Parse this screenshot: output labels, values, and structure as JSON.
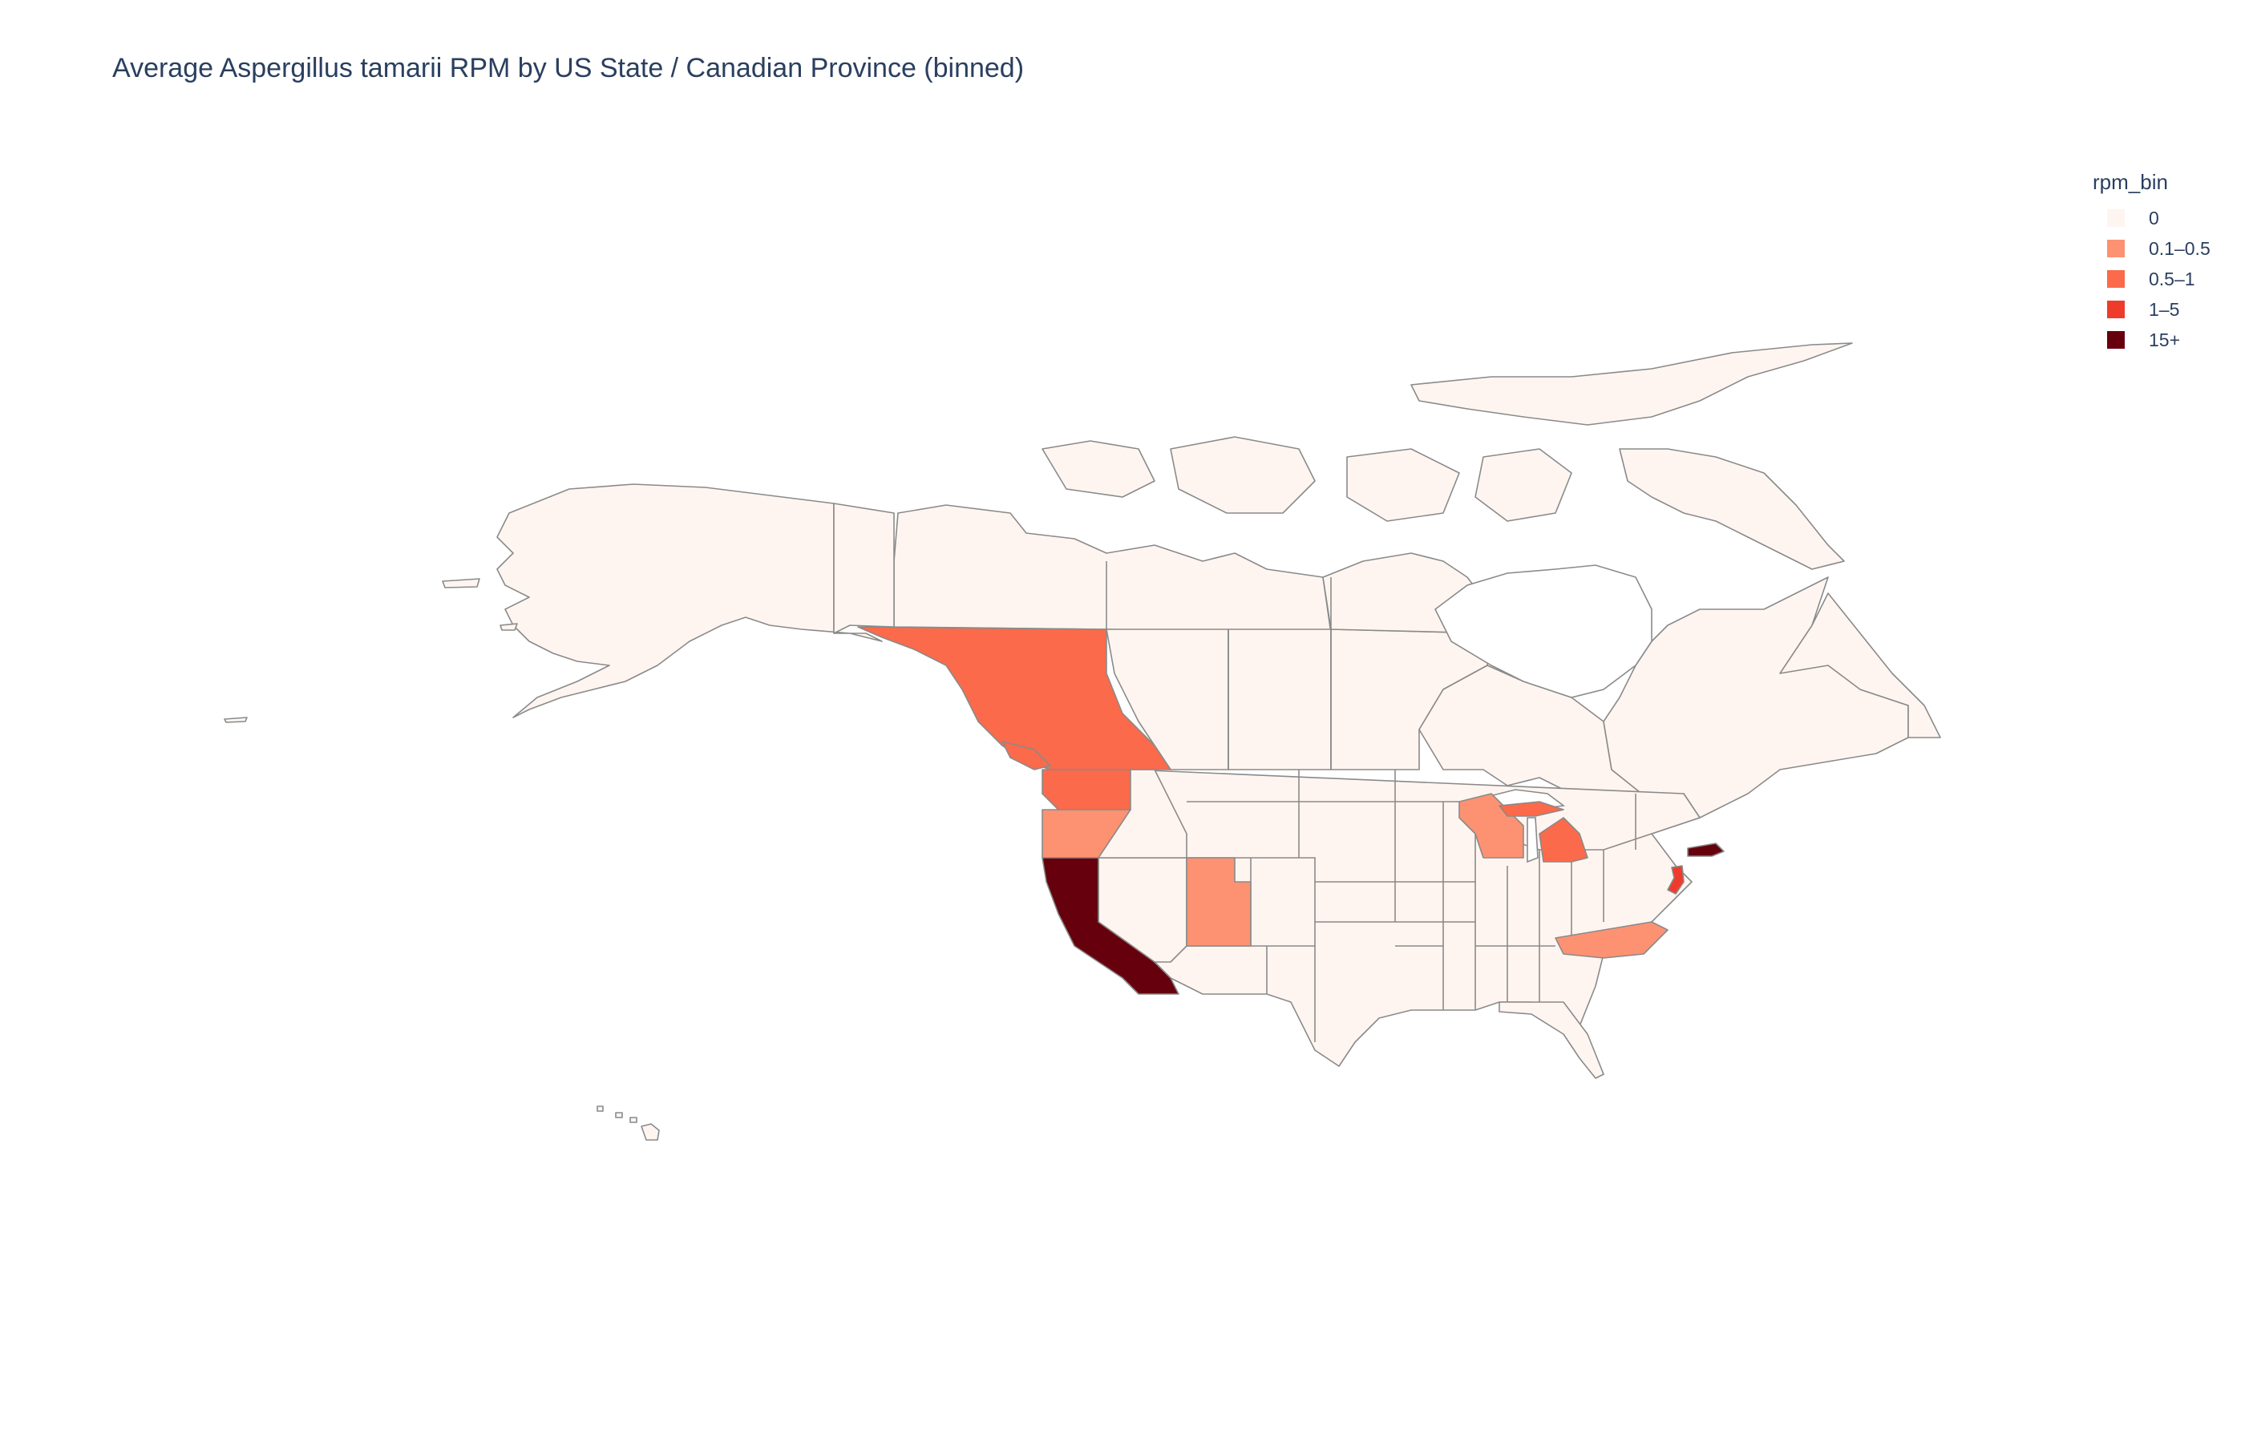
{
  "title": "Average Aspergillus tamarii RPM by US State / Canadian Province (binned)",
  "legend": {
    "title": "rpm_bin",
    "items": [
      {
        "label": "0",
        "color": "#fff5f0"
      },
      {
        "label": "0.1–0.5",
        "color": "#fc9272"
      },
      {
        "label": "0.5–1",
        "color": "#fb6a4a"
      },
      {
        "label": "1–5",
        "color": "#ef3b2c"
      },
      {
        "label": "15+",
        "color": "#67000d"
      }
    ]
  },
  "chart_data": {
    "type": "choropleth",
    "title": "Average Aspergillus tamarii RPM by US State / Canadian Province (binned)",
    "legend_title": "rpm_bin",
    "legend_placement": "top-right",
    "bins": [
      "0",
      "0.1–0.5",
      "0.5–1",
      "1–5",
      "15+"
    ],
    "regions": [
      {
        "region": "California",
        "bin": "15+"
      },
      {
        "region": "Massachusetts",
        "bin": "15+"
      },
      {
        "region": "New Jersey",
        "bin": "1–5"
      },
      {
        "region": "British Columbia",
        "bin": "0.5–1"
      },
      {
        "region": "Washington",
        "bin": "0.5–1"
      },
      {
        "region": "Michigan",
        "bin": "0.5–1"
      },
      {
        "region": "Oregon",
        "bin": "0.1–0.5"
      },
      {
        "region": "Utah",
        "bin": "0.1–0.5"
      },
      {
        "region": "Wisconsin",
        "bin": "0.1–0.5"
      },
      {
        "region": "North Carolina",
        "bin": "0.1–0.5"
      },
      {
        "region": "Alaska",
        "bin": "0"
      },
      {
        "region": "Yukon",
        "bin": "0"
      },
      {
        "region": "Northwest Territories",
        "bin": "0"
      },
      {
        "region": "Nunavut",
        "bin": "0"
      },
      {
        "region": "Alberta",
        "bin": "0"
      },
      {
        "region": "Saskatchewan",
        "bin": "0"
      },
      {
        "region": "Manitoba",
        "bin": "0"
      },
      {
        "region": "Ontario",
        "bin": "0"
      },
      {
        "region": "Quebec",
        "bin": "0"
      },
      {
        "region": "Newfoundland and Labrador",
        "bin": "0"
      },
      {
        "region": "Hawaii",
        "bin": "0"
      },
      {
        "region": "Nevada",
        "bin": "0"
      },
      {
        "region": "Arizona",
        "bin": "0"
      },
      {
        "region": "Idaho",
        "bin": "0"
      },
      {
        "region": "Montana",
        "bin": "0"
      },
      {
        "region": "Wyoming",
        "bin": "0"
      },
      {
        "region": "Colorado",
        "bin": "0"
      },
      {
        "region": "New Mexico",
        "bin": "0"
      },
      {
        "region": "Texas",
        "bin": "0"
      },
      {
        "region": "Florida",
        "bin": "0"
      }
    ]
  }
}
